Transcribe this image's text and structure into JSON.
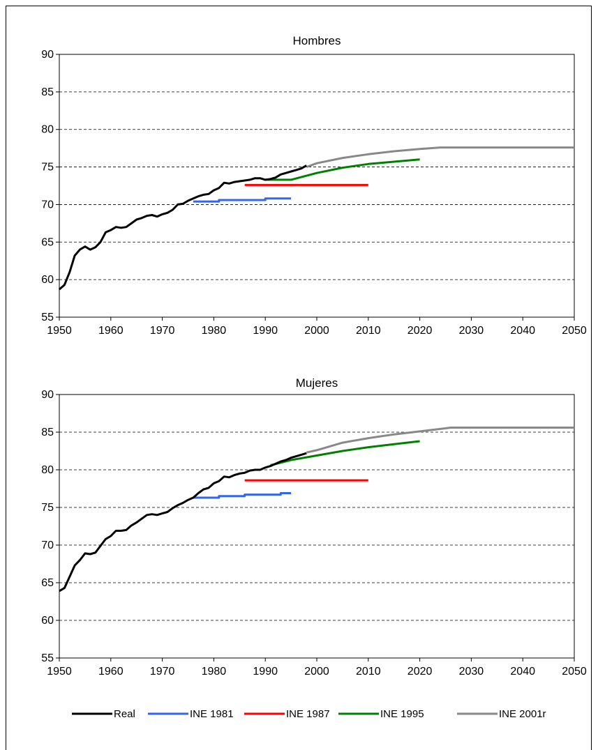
{
  "chart_data": [
    {
      "type": "line",
      "title": "Hombres",
      "xlim": [
        1950,
        2050
      ],
      "ylim": [
        55,
        90
      ],
      "xticks": [
        "1950",
        "1960",
        "1970",
        "1980",
        "1990",
        "2000",
        "2010",
        "2020",
        "2030",
        "2040",
        "2050"
      ],
      "yticks": [
        "55",
        "60",
        "65",
        "70",
        "75",
        "80",
        "85",
        "90"
      ],
      "grid": "horizontal-dashed",
      "series": [
        {
          "name": "Real",
          "color": "#000000",
          "points": [
            [
              1950,
              58.7
            ],
            [
              1951,
              59.3
            ],
            [
              1952,
              61.0
            ],
            [
              1953,
              63.2
            ],
            [
              1954,
              64.0
            ],
            [
              1955,
              64.4
            ],
            [
              1956,
              64.0
            ],
            [
              1957,
              64.3
            ],
            [
              1958,
              65.0
            ],
            [
              1959,
              66.3
            ],
            [
              1960,
              66.6
            ],
            [
              1961,
              67.0
            ],
            [
              1962,
              66.9
            ],
            [
              1963,
              67.0
            ],
            [
              1964,
              67.5
            ],
            [
              1965,
              68.0
            ],
            [
              1966,
              68.2
            ],
            [
              1967,
              68.5
            ],
            [
              1968,
              68.6
            ],
            [
              1969,
              68.4
            ],
            [
              1970,
              68.7
            ],
            [
              1971,
              68.9
            ],
            [
              1972,
              69.3
            ],
            [
              1973,
              70.0
            ],
            [
              1974,
              70.1
            ],
            [
              1975,
              70.5
            ],
            [
              1976,
              70.8
            ],
            [
              1977,
              71.1
            ],
            [
              1978,
              71.3
            ],
            [
              1979,
              71.4
            ],
            [
              1980,
              71.9
            ],
            [
              1981,
              72.2
            ],
            [
              1982,
              72.9
            ],
            [
              1983,
              72.8
            ],
            [
              1984,
              73.0
            ],
            [
              1985,
              73.1
            ],
            [
              1986,
              73.2
            ],
            [
              1987,
              73.3
            ],
            [
              1988,
              73.5
            ],
            [
              1989,
              73.5
            ],
            [
              1990,
              73.3
            ],
            [
              1991,
              73.4
            ],
            [
              1992,
              73.6
            ],
            [
              1993,
              74.0
            ],
            [
              1994,
              74.2
            ],
            [
              1995,
              74.4
            ],
            [
              1996,
              74.6
            ],
            [
              1997,
              74.8
            ],
            [
              1998,
              75.2
            ]
          ]
        },
        {
          "name": "INE 1981",
          "color": "#3366ee",
          "points": [
            [
              1976,
              70.4
            ],
            [
              1981,
              70.4
            ],
            [
              1981,
              70.6
            ],
            [
              1990,
              70.6
            ],
            [
              1990,
              70.8
            ],
            [
              1995,
              70.8
            ]
          ]
        },
        {
          "name": "INE 1987",
          "color": "#ff0000",
          "points": [
            [
              1986,
              72.6
            ],
            [
              2010,
              72.6
            ]
          ]
        },
        {
          "name": "INE 1995",
          "color": "#008000",
          "points": [
            [
              1990,
              73.3
            ],
            [
              1995,
              73.3
            ],
            [
              2000,
              74.2
            ],
            [
              2005,
              74.9
            ],
            [
              2010,
              75.4
            ],
            [
              2015,
              75.7
            ],
            [
              2020,
              76.0
            ]
          ]
        },
        {
          "name": "INE 2001r",
          "color": "#888888",
          "points": [
            [
              1998,
              75.0
            ],
            [
              2000,
              75.5
            ],
            [
              2005,
              76.2
            ],
            [
              2010,
              76.7
            ],
            [
              2015,
              77.1
            ],
            [
              2020,
              77.4
            ],
            [
              2024,
              77.6
            ],
            [
              2050,
              77.6
            ]
          ]
        }
      ]
    },
    {
      "type": "line",
      "title": "Mujeres",
      "xlim": [
        1950,
        2050
      ],
      "ylim": [
        55,
        90
      ],
      "xticks": [
        "1950",
        "1960",
        "1970",
        "1980",
        "1990",
        "2000",
        "2010",
        "2020",
        "2030",
        "2040",
        "2050"
      ],
      "yticks": [
        "55",
        "60",
        "65",
        "70",
        "75",
        "80",
        "85",
        "90"
      ],
      "grid": "horizontal-dashed",
      "series": [
        {
          "name": "Real",
          "color": "#000000",
          "points": [
            [
              1950,
              63.9
            ],
            [
              1951,
              64.3
            ],
            [
              1952,
              65.8
            ],
            [
              1953,
              67.3
            ],
            [
              1954,
              68.0
            ],
            [
              1955,
              68.9
            ],
            [
              1956,
              68.8
            ],
            [
              1957,
              69.0
            ],
            [
              1958,
              69.9
            ],
            [
              1959,
              70.8
            ],
            [
              1960,
              71.2
            ],
            [
              1961,
              71.9
            ],
            [
              1962,
              71.9
            ],
            [
              1963,
              72.0
            ],
            [
              1964,
              72.6
            ],
            [
              1965,
              73.0
            ],
            [
              1966,
              73.5
            ],
            [
              1967,
              74.0
            ],
            [
              1968,
              74.1
            ],
            [
              1969,
              74.0
            ],
            [
              1970,
              74.2
            ],
            [
              1971,
              74.4
            ],
            [
              1972,
              74.9
            ],
            [
              1973,
              75.3
            ],
            [
              1974,
              75.6
            ],
            [
              1975,
              76.0
            ],
            [
              1976,
              76.3
            ],
            [
              1977,
              76.9
            ],
            [
              1978,
              77.4
            ],
            [
              1979,
              77.6
            ],
            [
              1980,
              78.2
            ],
            [
              1981,
              78.5
            ],
            [
              1982,
              79.1
            ],
            [
              1983,
              79.0
            ],
            [
              1984,
              79.3
            ],
            [
              1985,
              79.5
            ],
            [
              1986,
              79.6
            ],
            [
              1987,
              79.9
            ],
            [
              1988,
              80.0
            ],
            [
              1989,
              80.0
            ],
            [
              1990,
              80.3
            ],
            [
              1991,
              80.5
            ],
            [
              1992,
              80.8
            ],
            [
              1993,
              81.1
            ],
            [
              1994,
              81.3
            ],
            [
              1995,
              81.6
            ],
            [
              1996,
              81.8
            ],
            [
              1997,
              82.0
            ],
            [
              1998,
              82.2
            ]
          ]
        },
        {
          "name": "INE 1981",
          "color": "#3366ee",
          "points": [
            [
              1976,
              76.3
            ],
            [
              1981,
              76.3
            ],
            [
              1981,
              76.5
            ],
            [
              1986,
              76.5
            ],
            [
              1986,
              76.7
            ],
            [
              1993,
              76.7
            ],
            [
              1993,
              76.9
            ],
            [
              1995,
              76.9
            ]
          ]
        },
        {
          "name": "INE 1987",
          "color": "#ff0000",
          "points": [
            [
              1986,
              78.6
            ],
            [
              2010,
              78.6
            ]
          ]
        },
        {
          "name": "INE 1995",
          "color": "#008000",
          "points": [
            [
              1991,
              80.6
            ],
            [
              1995,
              81.3
            ],
            [
              2000,
              81.9
            ],
            [
              2005,
              82.5
            ],
            [
              2010,
              83.0
            ],
            [
              2015,
              83.4
            ],
            [
              2020,
              83.8
            ]
          ]
        },
        {
          "name": "INE 2001r",
          "color": "#888888",
          "points": [
            [
              1998,
              82.3
            ],
            [
              2000,
              82.6
            ],
            [
              2005,
              83.6
            ],
            [
              2010,
              84.2
            ],
            [
              2015,
              84.7
            ],
            [
              2020,
              85.1
            ],
            [
              2026,
              85.6
            ],
            [
              2050,
              85.6
            ]
          ]
        }
      ]
    }
  ],
  "legend": {
    "position": "bottom-center",
    "items": [
      {
        "label": "Real",
        "color": "#000000"
      },
      {
        "label": "INE 1981",
        "color": "#3366ee"
      },
      {
        "label": "INE 1987",
        "color": "#ff0000"
      },
      {
        "label": "INE 1995",
        "color": "#008000"
      },
      {
        "label": "INE 2001r",
        "color": "#888888"
      }
    ]
  }
}
